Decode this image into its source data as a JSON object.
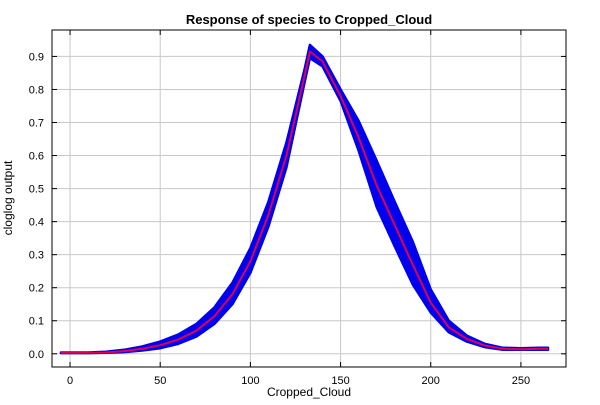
{
  "chart_data": {
    "type": "line",
    "title": "Response of species to Cropped_Cloud",
    "xlabel": "Cropped_Cloud",
    "ylabel": "cloglog output",
    "xlim": [
      -10,
      275
    ],
    "ylim": [
      -0.04,
      0.98
    ],
    "xticks": [
      0,
      50,
      100,
      150,
      200,
      250
    ],
    "yticks": [
      0.0,
      0.1,
      0.2,
      0.3,
      0.4,
      0.5,
      0.6,
      0.7,
      0.8,
      0.9
    ],
    "grid": true,
    "series": [
      {
        "role": "mean",
        "color": "#e0004d",
        "x": [
          -5,
          0,
          10,
          20,
          30,
          40,
          50,
          60,
          70,
          80,
          90,
          100,
          110,
          120,
          130,
          133,
          140,
          150,
          160,
          170,
          180,
          190,
          200,
          210,
          220,
          230,
          240,
          250,
          260,
          265
        ],
        "y": [
          0.003,
          0.003,
          0.003,
          0.004,
          0.008,
          0.015,
          0.026,
          0.043,
          0.07,
          0.113,
          0.18,
          0.28,
          0.42,
          0.6,
          0.84,
          0.915,
          0.885,
          0.78,
          0.655,
          0.51,
          0.39,
          0.27,
          0.155,
          0.08,
          0.045,
          0.025,
          0.015,
          0.014,
          0.015,
          0.015
        ]
      },
      {
        "role": "mean-plus-one-sd",
        "color": "#0000ee",
        "x": [
          -5,
          0,
          10,
          20,
          30,
          40,
          50,
          60,
          70,
          80,
          90,
          100,
          110,
          120,
          130,
          133,
          140,
          150,
          160,
          170,
          180,
          190,
          200,
          210,
          220,
          230,
          240,
          250,
          260,
          265
        ],
        "y": [
          0.004,
          0.004,
          0.004,
          0.006,
          0.012,
          0.022,
          0.037,
          0.058,
          0.09,
          0.14,
          0.215,
          0.32,
          0.46,
          0.64,
          0.86,
          0.935,
          0.9,
          0.8,
          0.705,
          0.585,
          0.46,
          0.34,
          0.195,
          0.1,
          0.055,
          0.03,
          0.018,
          0.017,
          0.018,
          0.018
        ]
      },
      {
        "role": "mean-minus-one-sd",
        "color": "#0000ee",
        "x": [
          -5,
          0,
          10,
          20,
          30,
          40,
          50,
          60,
          70,
          80,
          90,
          100,
          110,
          120,
          130,
          133,
          140,
          150,
          160,
          170,
          180,
          190,
          200,
          210,
          220,
          230,
          240,
          250,
          260,
          265
        ],
        "y": [
          0.002,
          0.002,
          0.002,
          0.003,
          0.005,
          0.01,
          0.017,
          0.03,
          0.052,
          0.09,
          0.15,
          0.245,
          0.385,
          0.565,
          0.82,
          0.895,
          0.87,
          0.765,
          0.615,
          0.445,
          0.325,
          0.21,
          0.125,
          0.065,
          0.037,
          0.02,
          0.012,
          0.012,
          0.012,
          0.012
        ]
      }
    ]
  }
}
